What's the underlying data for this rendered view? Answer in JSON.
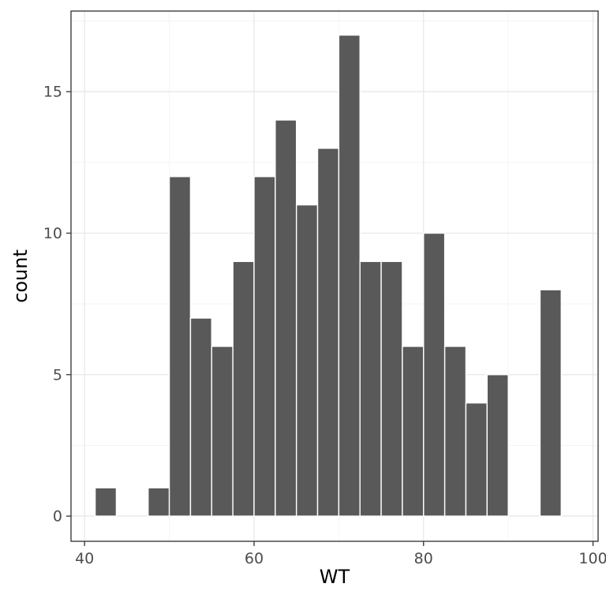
{
  "chart_data": {
    "type": "bar",
    "variant": "histogram",
    "title": "",
    "xlabel": "WT",
    "ylabel": "count",
    "xlim": [
      38.4,
      100.6
    ],
    "ylim": [
      0,
      17
    ],
    "x_ticks": [
      40,
      60,
      80,
      100
    ],
    "y_ticks": [
      0,
      5,
      10,
      15
    ],
    "binwidth": 2.5,
    "total_n": 160,
    "grid": "on",
    "legend": "none",
    "bar_fill": "#595959",
    "bar_stroke": "#ffffff",
    "background": "#ffffff",
    "panel_border": "#2e2e2e",
    "grid_major_color": "#e8e8e8",
    "grid_minor_color": "#f4f4f4",
    "tick_label_color": "#4d4d4d",
    "bins": [
      {
        "x0": 41.25,
        "x1": 43.75,
        "count": 1
      },
      {
        "x0": 47.5,
        "x1": 50.0,
        "count": 1
      },
      {
        "x0": 50.0,
        "x1": 52.5,
        "count": 12
      },
      {
        "x0": 52.5,
        "x1": 55.0,
        "count": 7
      },
      {
        "x0": 55.0,
        "x1": 57.5,
        "count": 6
      },
      {
        "x0": 57.5,
        "x1": 60.0,
        "count": 9
      },
      {
        "x0": 60.0,
        "x1": 62.5,
        "count": 12
      },
      {
        "x0": 62.5,
        "x1": 65.0,
        "count": 14
      },
      {
        "x0": 65.0,
        "x1": 67.5,
        "count": 11
      },
      {
        "x0": 67.5,
        "x1": 70.0,
        "count": 13
      },
      {
        "x0": 70.0,
        "x1": 72.5,
        "count": 17
      },
      {
        "x0": 72.5,
        "x1": 75.0,
        "count": 9
      },
      {
        "x0": 75.0,
        "x1": 77.5,
        "count": 9
      },
      {
        "x0": 77.5,
        "x1": 80.0,
        "count": 6
      },
      {
        "x0": 80.0,
        "x1": 82.5,
        "count": 10
      },
      {
        "x0": 82.5,
        "x1": 85.0,
        "count": 6
      },
      {
        "x0": 85.0,
        "x1": 87.5,
        "count": 4
      },
      {
        "x0": 87.5,
        "x1": 90.0,
        "count": 5
      },
      {
        "x0": 93.75,
        "x1": 96.25,
        "count": 8
      }
    ]
  }
}
